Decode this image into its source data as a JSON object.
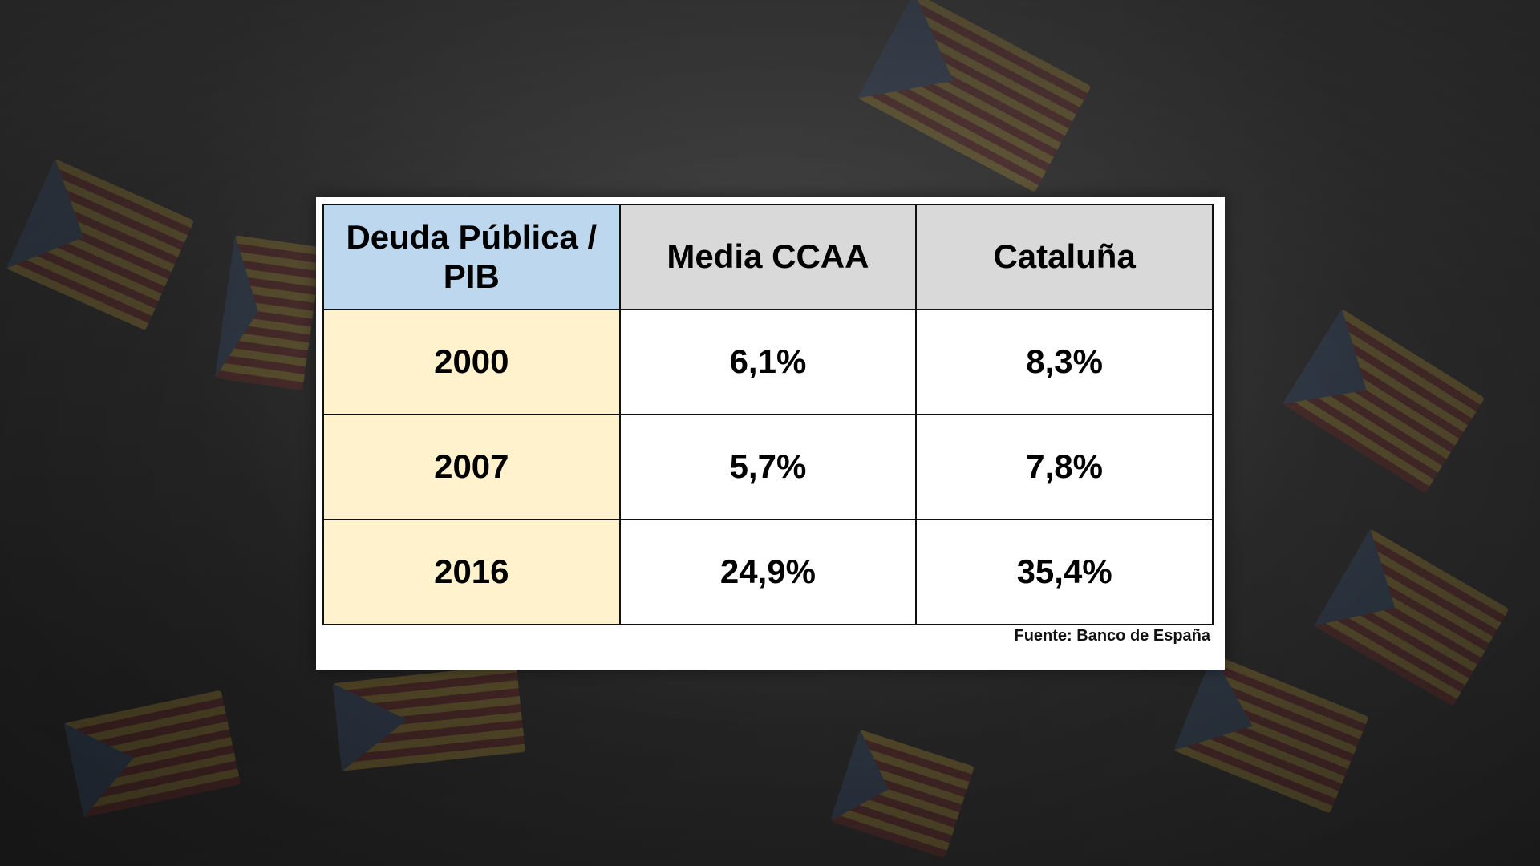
{
  "colors": {
    "header_corner": "#bdd7ee",
    "header": "#d9d9d9",
    "year_cells": "#fff2cc",
    "value_cells": "#ffffff",
    "border": "#111111"
  },
  "chart_data": {
    "type": "table",
    "columns": [
      "Deuda Pública / PIB",
      "Media CCAA",
      "Cataluña"
    ],
    "rows": [
      {
        "year": "2000",
        "media_ccaa": "6,1%",
        "cataluna": "8,3%"
      },
      {
        "year": "2007",
        "media_ccaa": "5,7%",
        "cataluna": "7,8%"
      },
      {
        "year": "2016",
        "media_ccaa": "24,9%",
        "cataluna": "35,4%"
      }
    ],
    "source": "Fuente: Banco de España"
  }
}
